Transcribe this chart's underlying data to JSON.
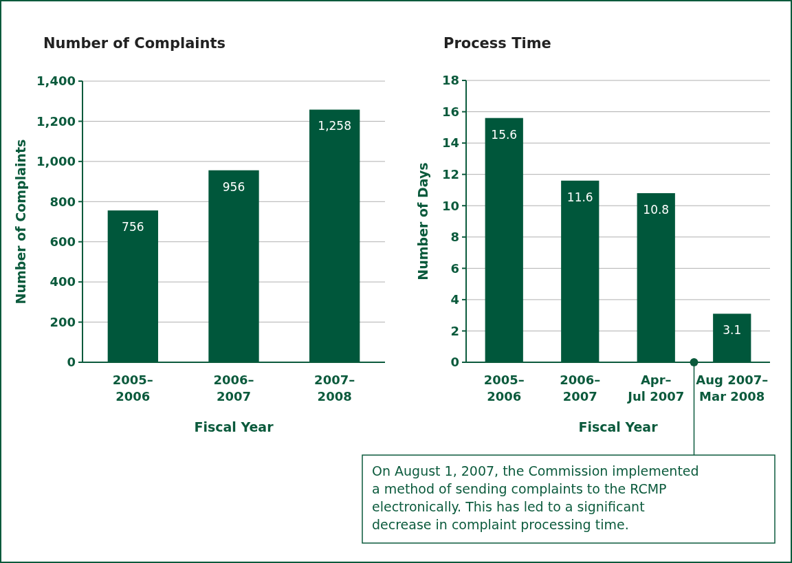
{
  "chart_data": [
    {
      "type": "bar",
      "title": "Number of Complaints",
      "xlabel": "Fiscal Year",
      "ylabel": "Number of Complaints",
      "categories": [
        "2005–2006",
        "2006–2007",
        "2007–2008"
      ],
      "values": [
        756,
        956,
        1258
      ],
      "color": "#00573b",
      "ylim": [
        0,
        1400
      ],
      "yticks": [
        0,
        200,
        400,
        600,
        800,
        {
          "value": 1000,
          "label": "1,000"
        },
        {
          "value": 1200,
          "label": "1,200"
        },
        {
          "value": 1400,
          "label": "1,400"
        }
      ],
      "grid": "y",
      "data_labels": true,
      "value_labels": [
        "756",
        "956",
        "1,258"
      ]
    },
    {
      "type": "bar",
      "title": "Process Time",
      "xlabel": "Fiscal Year",
      "ylabel": "Number of Days",
      "categories": [
        "2005–2006",
        "2006–2007",
        "Apr–Jul 2007",
        "Aug 2007–Mar 2008"
      ],
      "values": [
        15.6,
        11.6,
        10.8,
        3.1
      ],
      "color": "#00573b",
      "ylim": [
        0,
        18
      ],
      "yticks": [
        0,
        2,
        4,
        6,
        8,
        10,
        12,
        14,
        16,
        18
      ],
      "grid": "y",
      "data_labels": true,
      "annotations": [
        "On August 1, 2007, the Commission implemented a method of sending complaints to the RCMP electronically. This has led to a significant decrease in complaint processing time."
      ]
    }
  ]
}
